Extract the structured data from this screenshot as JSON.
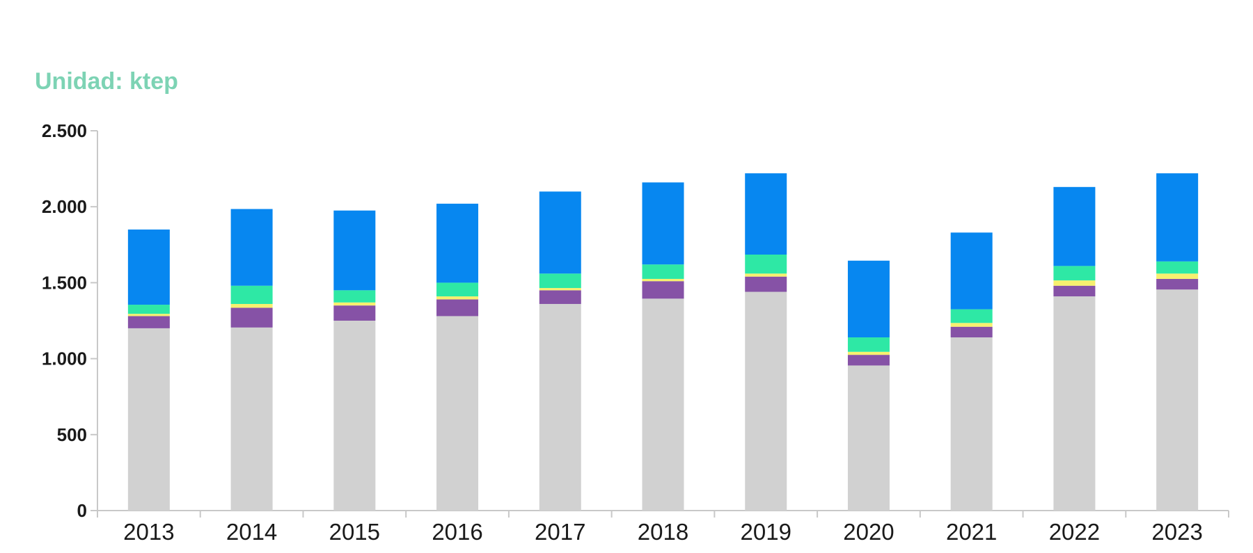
{
  "unit_label": "Unidad: ktep",
  "chart_data": {
    "type": "bar",
    "stacked": true,
    "title": "",
    "xlabel": "",
    "ylabel": "",
    "ylim": [
      0,
      2500
    ],
    "yticks": [
      0,
      500,
      1000,
      1500,
      2000,
      2500
    ],
    "ytick_labels": [
      "0",
      "500",
      "1.000",
      "1.500",
      "2.000",
      "2.500"
    ],
    "grid": false,
    "legend": "none",
    "categories": [
      "2013",
      "2014",
      "2015",
      "2016",
      "2017",
      "2018",
      "2019",
      "2020",
      "2021",
      "2022",
      "2023"
    ],
    "series": [
      {
        "name": "gray",
        "color": "#d1d1d1",
        "values": [
          1200,
          1205,
          1250,
          1280,
          1360,
          1395,
          1440,
          955,
          1140,
          1410,
          1455
        ]
      },
      {
        "name": "purple",
        "color": "#8652a6",
        "values": [
          80,
          130,
          100,
          110,
          90,
          115,
          100,
          70,
          70,
          70,
          70
        ]
      },
      {
        "name": "yellow",
        "color": "#f7f06f",
        "values": [
          15,
          25,
          20,
          20,
          15,
          15,
          20,
          20,
          25,
          35,
          35
        ]
      },
      {
        "name": "green",
        "color": "#2ee8a5",
        "values": [
          60,
          120,
          80,
          90,
          95,
          95,
          125,
          95,
          90,
          95,
          80
        ]
      },
      {
        "name": "blue",
        "color": "#0787f0",
        "values": [
          495,
          505,
          525,
          520,
          540,
          540,
          535,
          505,
          505,
          520,
          580
        ]
      }
    ]
  }
}
